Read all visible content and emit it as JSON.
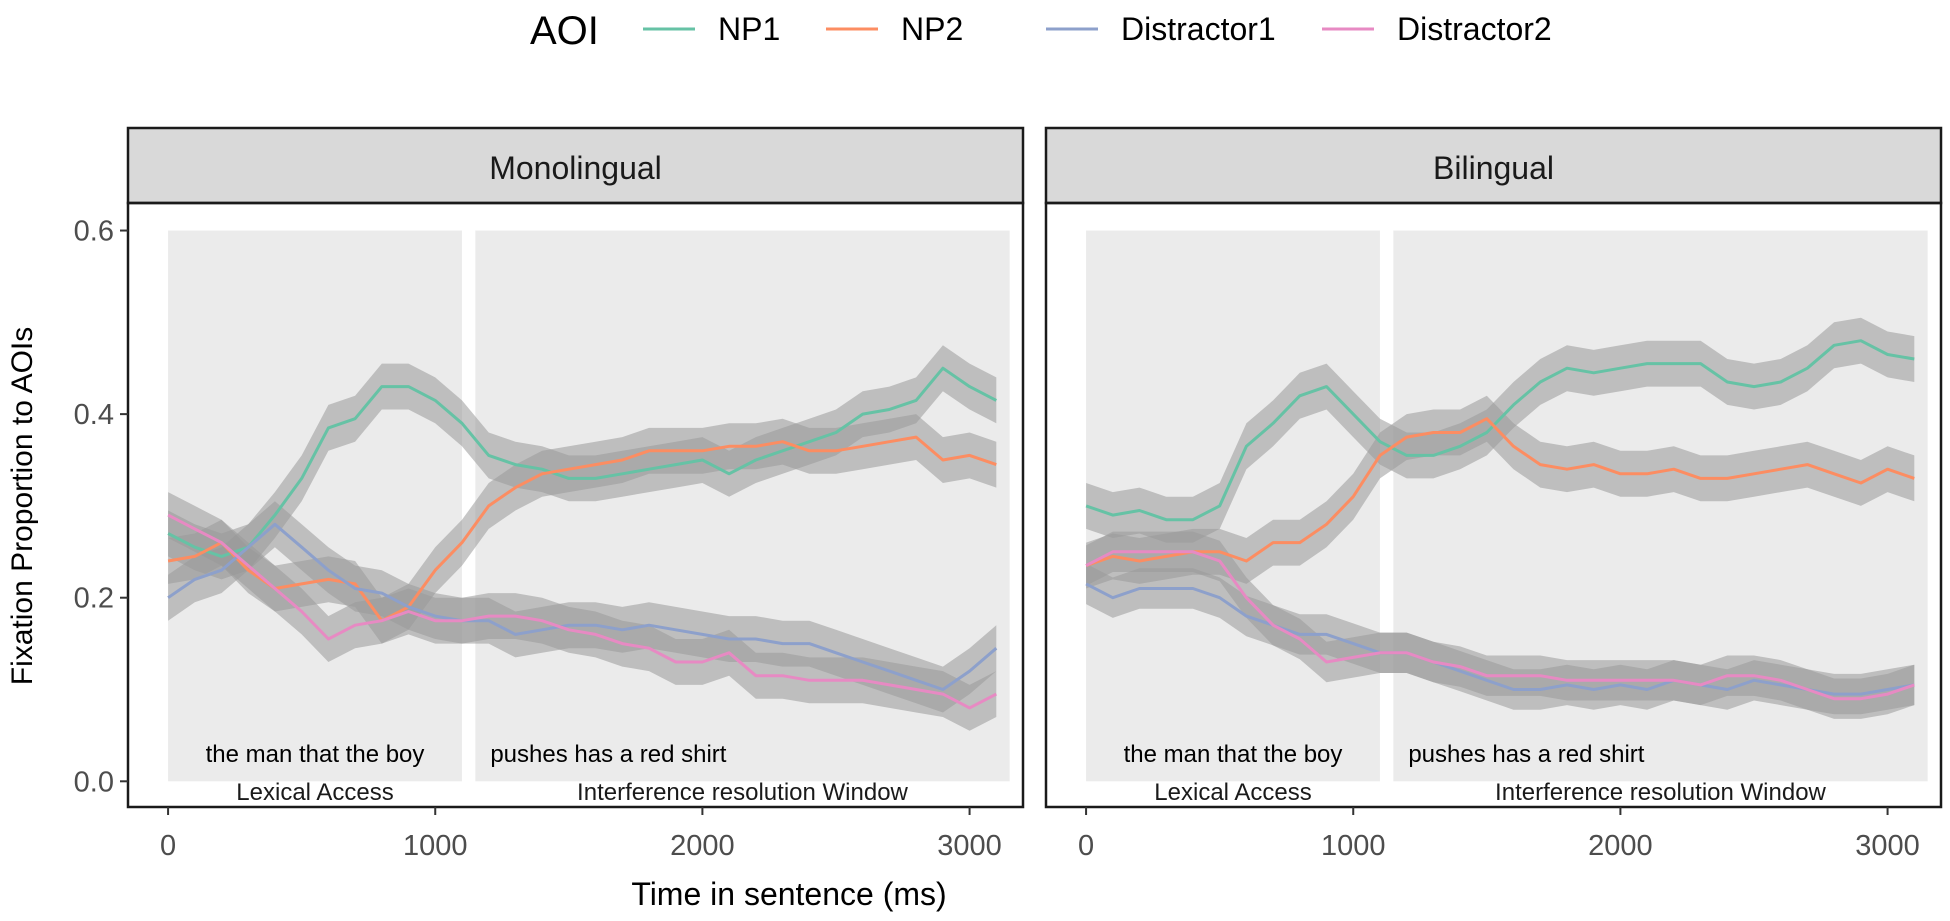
{
  "chart_data": {
    "type": "line",
    "legend": {
      "title": "AOI",
      "position": "top",
      "entries": [
        {
          "name": "NP1",
          "color": "#66C2A5"
        },
        {
          "name": "NP2",
          "color": "#FC8D62"
        },
        {
          "name": "Distractor1",
          "color": "#8DA0CB"
        },
        {
          "name": "Distractor2",
          "color": "#E78AC3"
        }
      ]
    },
    "xlabel": "Time in sentence (ms)",
    "ylabel": "Fixation Proportion to AOIs",
    "xlim": [
      -150,
      3200
    ],
    "ylim": [
      -0.028,
      0.63
    ],
    "x_ticks": [
      0,
      1000,
      2000,
      3000
    ],
    "y_ticks": [
      0.0,
      0.2,
      0.4,
      0.6
    ],
    "x_tick_labels": [
      "0",
      "1000",
      "2000",
      "3000"
    ],
    "y_tick_labels": [
      "0.0",
      "0.2",
      "0.4",
      "0.6"
    ],
    "band_color": "#999999",
    "x": [
      0,
      100,
      200,
      300,
      400,
      500,
      600,
      700,
      800,
      900,
      1000,
      1100,
      1200,
      1300,
      1400,
      1500,
      1600,
      1700,
      1800,
      1900,
      2000,
      2100,
      2200,
      2300,
      2400,
      2500,
      2600,
      2700,
      2800,
      2900,
      3000,
      3100
    ],
    "panels": [
      {
        "title": "Monolingual",
        "windows": [
          {
            "label": "Lexical Access",
            "words": "the man that the boy",
            "start": 0,
            "end": 1100
          },
          {
            "label": "Interference resolution Window",
            "words": "pushes has a red shirt",
            "start": 1150,
            "end": 3150
          }
        ],
        "series": [
          {
            "name": "NP1",
            "values": [
              0.27,
              0.255,
              0.245,
              0.255,
              0.29,
              0.33,
              0.385,
              0.395,
              0.43,
              0.43,
              0.415,
              0.39,
              0.355,
              0.345,
              0.34,
              0.33,
              0.33,
              0.335,
              0.34,
              0.345,
              0.35,
              0.335,
              0.35,
              0.36,
              0.37,
              0.38,
              0.4,
              0.405,
              0.415,
              0.45,
              0.43,
              0.415
            ],
            "band": 0.025
          },
          {
            "name": "NP2",
            "values": [
              0.24,
              0.245,
              0.26,
              0.23,
              0.21,
              0.215,
              0.22,
              0.215,
              0.175,
              0.19,
              0.23,
              0.26,
              0.3,
              0.32,
              0.335,
              0.34,
              0.345,
              0.35,
              0.36,
              0.36,
              0.36,
              0.365,
              0.365,
              0.37,
              0.36,
              0.36,
              0.365,
              0.37,
              0.375,
              0.35,
              0.355,
              0.345
            ],
            "band": 0.025
          },
          {
            "name": "Distractor1",
            "values": [
              0.2,
              0.22,
              0.23,
              0.255,
              0.28,
              0.255,
              0.23,
              0.21,
              0.205,
              0.19,
              0.18,
              0.175,
              0.175,
              0.16,
              0.165,
              0.17,
              0.17,
              0.165,
              0.17,
              0.165,
              0.16,
              0.155,
              0.155,
              0.15,
              0.15,
              0.14,
              0.13,
              0.12,
              0.11,
              0.1,
              0.12,
              0.145
            ],
            "band": 0.025
          },
          {
            "name": "Distractor2",
            "values": [
              0.29,
              0.275,
              0.26,
              0.235,
              0.21,
              0.185,
              0.155,
              0.17,
              0.175,
              0.185,
              0.175,
              0.175,
              0.18,
              0.18,
              0.175,
              0.165,
              0.16,
              0.15,
              0.145,
              0.13,
              0.13,
              0.14,
              0.115,
              0.115,
              0.11,
              0.11,
              0.11,
              0.105,
              0.1,
              0.095,
              0.08,
              0.095
            ],
            "band": 0.025
          }
        ]
      },
      {
        "title": "Bilingual",
        "windows": [
          {
            "label": "Lexical Access",
            "words": "the man that the boy",
            "start": 0,
            "end": 1100
          },
          {
            "label": "Interference resolution Window",
            "words": "pushes has a red shirt",
            "start": 1150,
            "end": 3150
          }
        ],
        "series": [
          {
            "name": "NP1",
            "values": [
              0.3,
              0.29,
              0.295,
              0.285,
              0.285,
              0.3,
              0.365,
              0.39,
              0.42,
              0.43,
              0.4,
              0.37,
              0.355,
              0.355,
              0.365,
              0.38,
              0.41,
              0.435,
              0.45,
              0.445,
              0.45,
              0.455,
              0.455,
              0.455,
              0.435,
              0.43,
              0.435,
              0.45,
              0.475,
              0.48,
              0.465,
              0.46
            ],
            "band": 0.025
          },
          {
            "name": "NP2",
            "values": [
              0.235,
              0.245,
              0.24,
              0.245,
              0.25,
              0.25,
              0.24,
              0.26,
              0.26,
              0.28,
              0.31,
              0.355,
              0.375,
              0.38,
              0.38,
              0.395,
              0.365,
              0.345,
              0.34,
              0.345,
              0.335,
              0.335,
              0.34,
              0.33,
              0.33,
              0.335,
              0.34,
              0.345,
              0.335,
              0.325,
              0.34,
              0.33
            ],
            "band": 0.025
          },
          {
            "name": "Distractor1",
            "values": [
              0.215,
              0.2,
              0.21,
              0.21,
              0.21,
              0.2,
              0.18,
              0.17,
              0.16,
              0.16,
              0.15,
              0.14,
              0.14,
              0.13,
              0.12,
              0.11,
              0.1,
              0.1,
              0.105,
              0.1,
              0.105,
              0.1,
              0.11,
              0.105,
              0.1,
              0.11,
              0.105,
              0.1,
              0.095,
              0.095,
              0.1,
              0.105
            ],
            "band": 0.022
          },
          {
            "name": "Distractor2",
            "values": [
              0.235,
              0.25,
              0.25,
              0.25,
              0.25,
              0.24,
              0.2,
              0.17,
              0.155,
              0.13,
              0.135,
              0.14,
              0.14,
              0.13,
              0.125,
              0.115,
              0.115,
              0.115,
              0.11,
              0.11,
              0.11,
              0.11,
              0.11,
              0.105,
              0.115,
              0.115,
              0.11,
              0.1,
              0.09,
              0.09,
              0.095,
              0.105
            ],
            "band": 0.022
          }
        ]
      }
    ]
  }
}
